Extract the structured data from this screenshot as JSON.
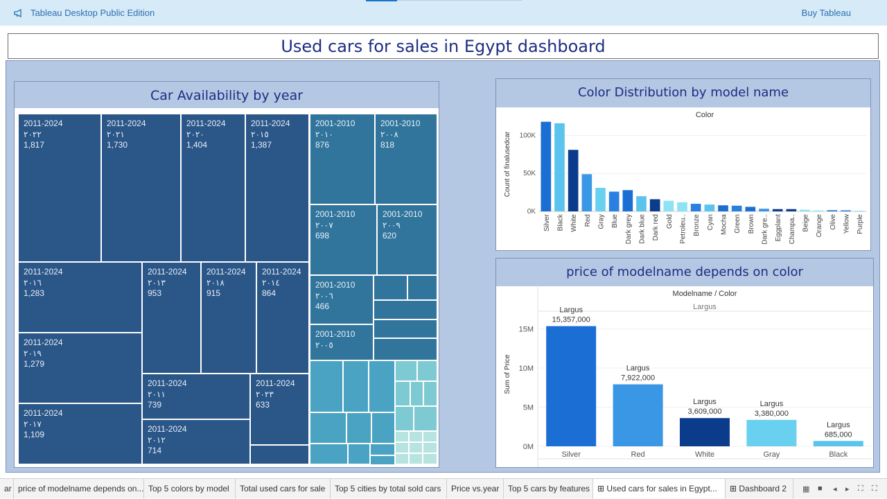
{
  "topbar": {
    "brand": "Tableau Desktop Public Edition",
    "buy": "Buy Tableau",
    "brand_icon": "megaphone-icon"
  },
  "dashboard": {
    "title": "Used cars for sales in Egypt dashboard"
  },
  "treemap": {
    "title": "Car Availability by year",
    "cells": [
      {
        "group": "2011-2024",
        "year": "٢٠٢٢",
        "value": "1,817"
      },
      {
        "group": "2011-2024",
        "year": "٢٠٢١",
        "value": "1,730"
      },
      {
        "group": "2011-2024",
        "year": "٢٠٢٠",
        "value": "1,404"
      },
      {
        "group": "2011-2024",
        "year": "٢٠١٥",
        "value": "1,387"
      },
      {
        "group": "2011-2024",
        "year": "٢٠١٦",
        "value": "1,283"
      },
      {
        "group": "2011-2024",
        "year": "٢٠١٣",
        "value": "953"
      },
      {
        "group": "2011-2024",
        "year": "٢٠١٨",
        "value": "915"
      },
      {
        "group": "2011-2024",
        "year": "٢٠١٤",
        "value": "864"
      },
      {
        "group": "2011-2024",
        "year": "٢٠١٩",
        "value": "1,279"
      },
      {
        "group": "2011-2024",
        "year": "٢٠١١",
        "value": "739"
      },
      {
        "group": "2011-2024",
        "year": "٢٠٢٣",
        "value": "633"
      },
      {
        "group": "2011-2024",
        "year": "٢٠١٧",
        "value": "1,109"
      },
      {
        "group": "2011-2024",
        "year": "٢٠١٢",
        "value": "714"
      },
      {
        "group": "2001-2010",
        "year": "٢٠١٠",
        "value": "876"
      },
      {
        "group": "2001-2010",
        "year": "٢٠٠٨",
        "value": "818"
      },
      {
        "group": "2001-2010",
        "year": "٢٠٠٧",
        "value": "698"
      },
      {
        "group": "2001-2010",
        "year": "٢٠٠٩",
        "value": "620"
      },
      {
        "group": "2001-2010",
        "year": "٢٠٠٦",
        "value": "466"
      },
      {
        "group": "2001-2010",
        "year": "٢٠٠٥",
        "value": ""
      }
    ]
  },
  "chart_data": [
    {
      "type": "bar",
      "title": "Color Distribution by model name",
      "header": "Color",
      "ylabel": "Count of finalusedcar",
      "yticks": [
        "0K",
        "50K",
        "100K"
      ],
      "ylim": [
        0,
        125000
      ],
      "categories": [
        "Silver",
        "Black",
        "White",
        "Red",
        "Gray",
        "Blue",
        "Dark grey",
        "Dark blue",
        "Dark red",
        "Gold",
        "Petroleu..",
        "Bronze",
        "Cyan",
        "Mocha",
        "Green",
        "Brown",
        "Dark gre..",
        "Eggplant",
        "Champa..",
        "Beige",
        "Orange",
        "Olive",
        "Yellow",
        "Purple"
      ],
      "values": [
        118000,
        116000,
        81000,
        49000,
        31000,
        26000,
        28000,
        20000,
        16000,
        14000,
        12000,
        10000,
        9000,
        8000,
        7500,
        6000,
        3500,
        3000,
        3000,
        2200,
        1200,
        1500,
        1300,
        900
      ],
      "colors": [
        "#1b6fd4",
        "#5bc4ec",
        "#0b3c8c",
        "#3a97e6",
        "#6ad0f0",
        "#2a80e0",
        "#1b6fd4",
        "#5bc4ec",
        "#0b3c8c",
        "#8de3f5",
        "#8de3f5",
        "#2a80e0",
        "#5bc4ec",
        "#1b6fd4",
        "#2a80e0",
        "#1b6fd4",
        "#3a97e6",
        "#0b3c8c",
        "#0b3c8c",
        "#8de3f5",
        "#8de3f5",
        "#1b6fd4",
        "#1b6fd4",
        "#8de3f5"
      ]
    },
    {
      "type": "bar",
      "title": "price of modelname depends on color",
      "header": "Modelname / Color",
      "subheader": "Largus",
      "ylabel": "Sum of Price",
      "yticks": [
        "0M",
        "5M",
        "10M",
        "15M"
      ],
      "ylim": [
        0,
        17000000
      ],
      "categories": [
        "Silver",
        "Red",
        "White",
        "Gray",
        "Black"
      ],
      "series_label": "Largus",
      "values": [
        15357000,
        7922000,
        3609000,
        3380000,
        685000
      ],
      "value_labels": [
        "15,357,000",
        "7,922,000",
        "3,609,000",
        "3,380,000",
        "685,000"
      ],
      "colors": [
        "#1b6fd4",
        "#3a97e6",
        "#0b3c8c",
        "#6ad0f0",
        "#5bc4ec"
      ]
    }
  ],
  "tabs": [
    {
      "label": "ar",
      "active": false
    },
    {
      "label": "price of modelname depends on...",
      "active": false
    },
    {
      "label": "Top 5 colors by model",
      "active": false
    },
    {
      "label": "Total used cars for sale",
      "active": false
    },
    {
      "label": "Top 5 cities by total sold cars",
      "active": false
    },
    {
      "label": "Price vs.year",
      "active": false
    },
    {
      "label": "Top 5 cars by features",
      "active": false
    },
    {
      "label": "Used cars for sales in Egypt...",
      "active": true
    },
    {
      "label": "Dashboard 2",
      "active": false
    }
  ]
}
